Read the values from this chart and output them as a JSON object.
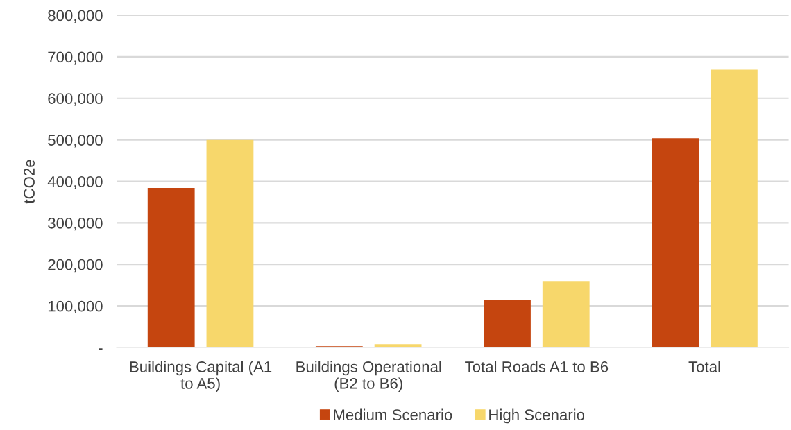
{
  "chart_data": {
    "type": "bar",
    "ylabel": "tCO2e",
    "categories": [
      "Buildings Capital (A1 to A5)",
      "Buildings Operational (B2 to B6)",
      "Total Roads A1 to B6",
      "Total"
    ],
    "series": [
      {
        "name": "Medium Scenario",
        "color": "#c5450f",
        "values": [
          384000,
          3000,
          114000,
          504000
        ]
      },
      {
        "name": "High Scenario",
        "color": "#f7d76b",
        "values": [
          500000,
          8000,
          160000,
          669000
        ]
      }
    ],
    "ylim": [
      0,
      800000
    ],
    "yticks": [
      {
        "value": 0,
        "label": "-"
      },
      {
        "value": 100000,
        "label": "100,000"
      },
      {
        "value": 200000,
        "label": "200,000"
      },
      {
        "value": 300000,
        "label": "300,000"
      },
      {
        "value": 400000,
        "label": "400,000"
      },
      {
        "value": 500000,
        "label": "500,000"
      },
      {
        "value": 600000,
        "label": "600,000"
      },
      {
        "value": 700000,
        "label": "700,000"
      },
      {
        "value": 800000,
        "label": "800,000"
      }
    ],
    "grid": "y",
    "legend": "bottom"
  }
}
